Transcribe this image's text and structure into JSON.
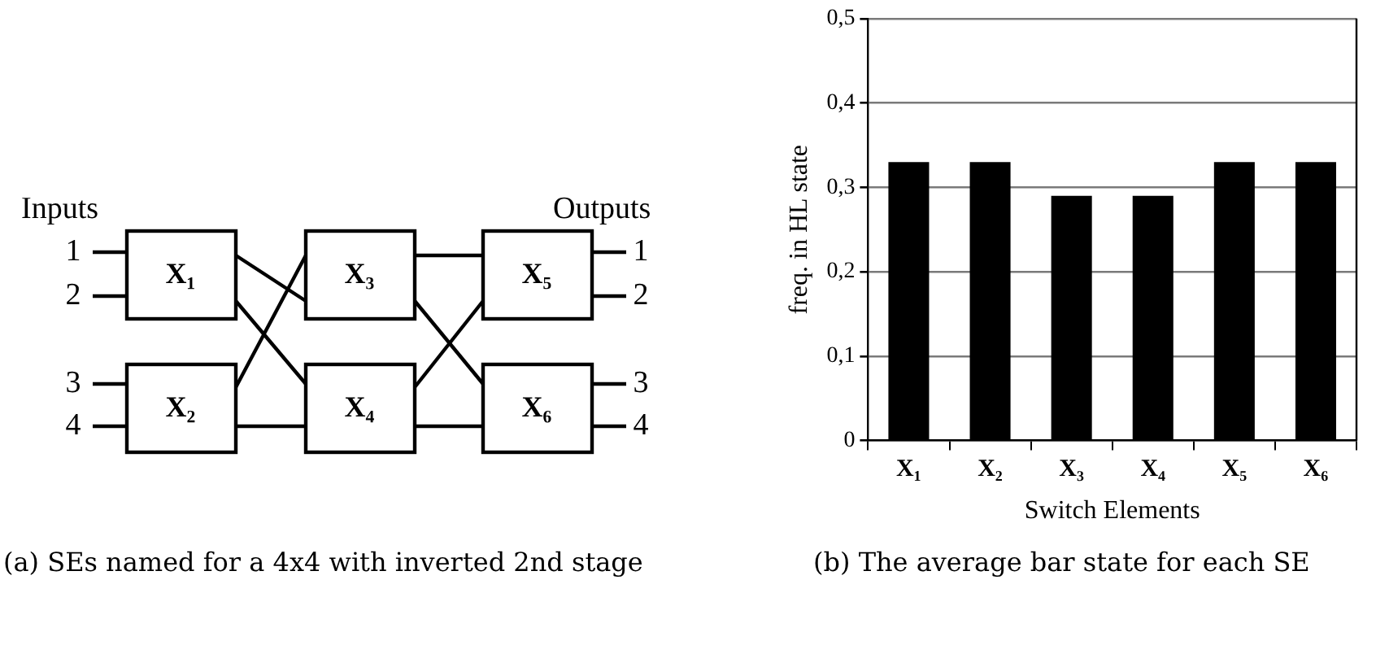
{
  "chart_data": [
    {
      "type": "other",
      "annotations": [
        "Inputs",
        "Outputs",
        "1",
        "2",
        "3",
        "4",
        "1",
        "2",
        "3",
        "4",
        "X₁",
        "X₂",
        "X₃",
        "X₄",
        "X₅",
        "X₆",
        "(a) SEs named for a 4x4 with inverted 2nd stage"
      ]
    },
    {
      "type": "bar",
      "ylabel": "freq. in HL state",
      "xlabel": "Switch Elements",
      "categories": [
        "X₁",
        "X₂",
        "X₃",
        "X₄",
        "X₅",
        "X₆"
      ],
      "values": [
        0.33,
        0.33,
        0.29,
        0.29,
        0.33,
        0.33
      ],
      "color": "#000000",
      "ylim": [
        0,
        0.5
      ],
      "yticks": [
        0,
        {
          "value": 0.1,
          "label": "0,1"
        },
        {
          "value": 0.2,
          "label": "0,2"
        },
        {
          "value": 0.3,
          "label": "0,3"
        },
        {
          "value": 0.4,
          "label": "0,4"
        },
        {
          "value": 0.5,
          "label": "0,5"
        }
      ],
      "grid": "y",
      "legend": false,
      "annotations": [
        "(b) The average bar state for each SE"
      ]
    }
  ]
}
